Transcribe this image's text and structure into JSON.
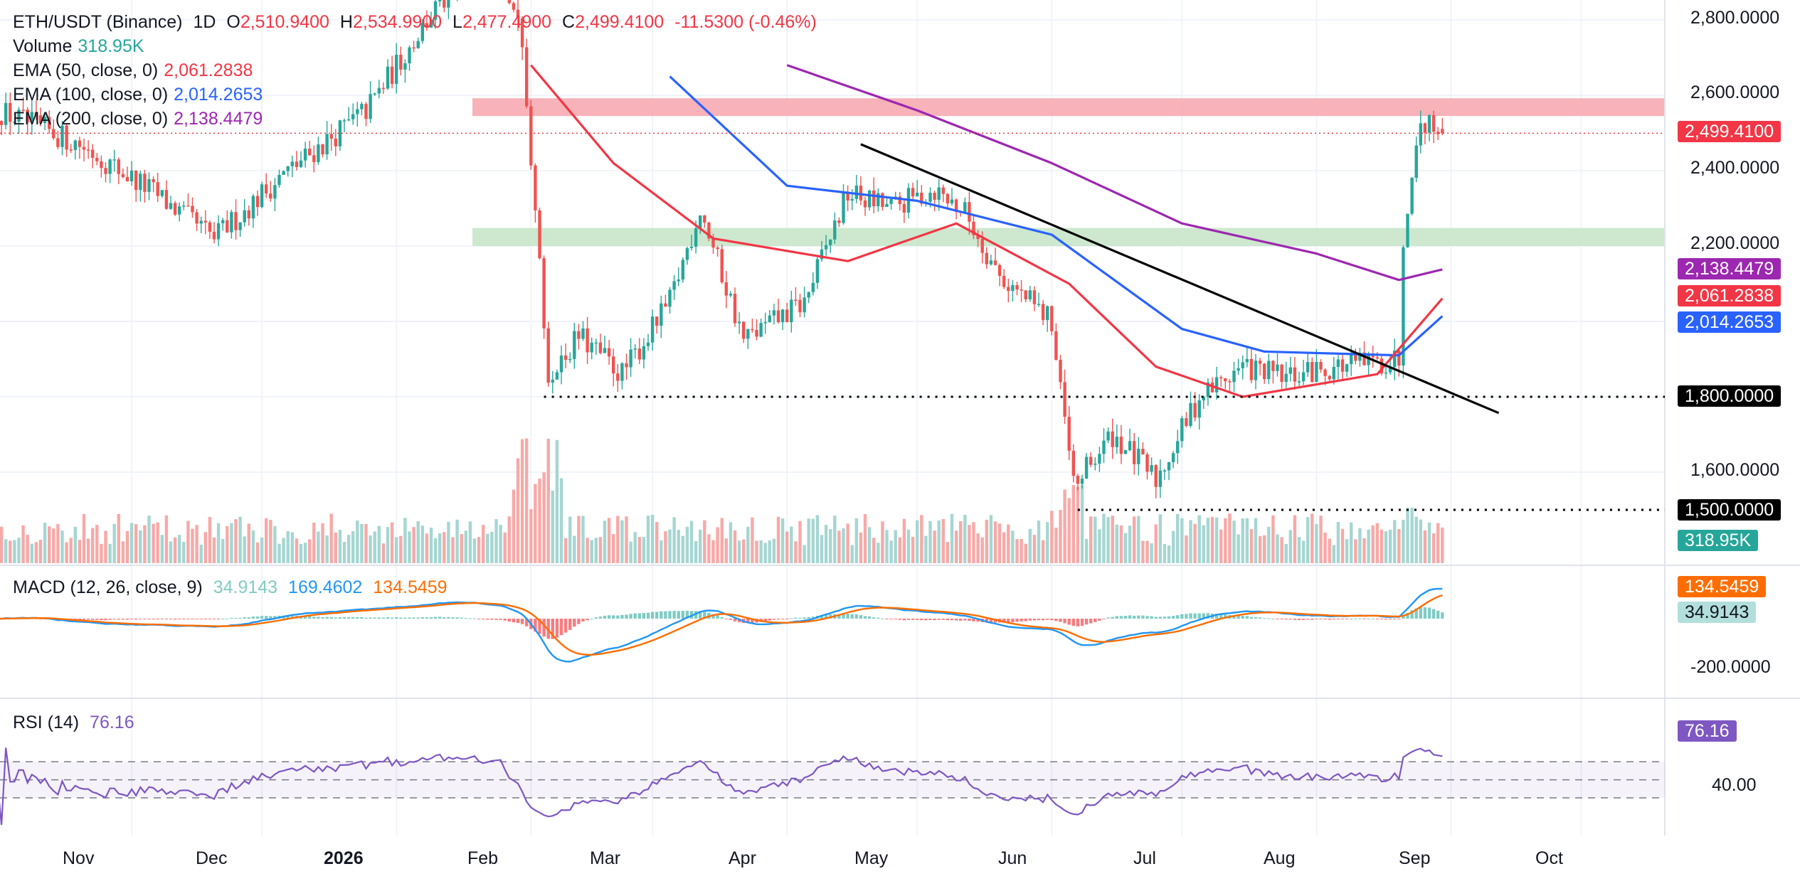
{
  "header": {
    "symbol": "ETH/USDT (Binance)",
    "interval": "1D",
    "o_label": "O",
    "o_value": "2,510.9400",
    "h_label": "H",
    "h_value": "2,534.9900",
    "l_label": "L",
    "l_value": "2,477.4900",
    "c_label": "C",
    "c_value": "2,499.4100",
    "change": "-11.5300 (-0.46%)"
  },
  "legend": {
    "volume_label": "Volume",
    "volume_value": "318.95K",
    "ema50_label": "EMA (50, close, 0)",
    "ema50_value": "2,061.2838",
    "ema100_label": "EMA (100, close, 0)",
    "ema100_value": "2,014.2653",
    "ema200_label": "EMA (200, close, 0)",
    "ema200_value": "2,138.4479",
    "macd_label": "MACD (12, 26, close, 9)",
    "macd_hist": "34.9143",
    "macd_line": "169.4602",
    "macd_signal": "134.5459",
    "rsi_label": "RSI (14)",
    "rsi_value": "76.16"
  },
  "price_axis": {
    "ticks": [
      "2,800.0000",
      "2,600.0000",
      "2,400.0000",
      "2,200.0000",
      "1,600.0000"
    ],
    "tags": {
      "last": "2,499.4100",
      "ema200": "2,138.4479",
      "ema50": "2,061.2838",
      "ema100": "2,014.2653",
      "support1": "1,800.0000",
      "support2": "1,500.0000",
      "volume": "318.95K"
    },
    "macd_tags": {
      "signal": "134.5459",
      "hist": "34.9143",
      "tick": "-200.0000"
    },
    "rsi_tags": {
      "rsi": "76.16",
      "tick": "40.00"
    }
  },
  "time_axis": [
    "Nov",
    "Dec",
    "2026",
    "Feb",
    "Mar",
    "Apr",
    "May",
    "Jun",
    "Jul",
    "Aug",
    "Sep",
    "Oct"
  ],
  "colors": {
    "up": "#26a69a",
    "down": "#ef5350",
    "ema50": "#f23645",
    "ema100": "#2962ff",
    "ema200": "#9c27b0",
    "macd": "#2196f3",
    "signal": "#ff6d00",
    "rsi": "#7e57c2",
    "resistance_zone": "#f7a4ad",
    "support_zone": "#c8e6c9"
  },
  "chart_data": {
    "type": "candlestick",
    "price_range": [
      1440,
      2830
    ],
    "zones": [
      {
        "kind": "resistance",
        "low": 2545,
        "high": 2592
      },
      {
        "kind": "support",
        "low": 2200,
        "high": 2248
      }
    ],
    "support_levels": [
      1800,
      1500
    ],
    "trendline": [
      {
        "date": "2026-04-18",
        "price": 2470
      },
      {
        "date": "2026-09-12",
        "price": 1757
      }
    ],
    "price_path": [
      [
        "2025-10-01",
        2560
      ],
      [
        "2025-10-20",
        2470
      ],
      [
        "2025-11-05",
        2350
      ],
      [
        "2025-11-20",
        2220
      ],
      [
        "2025-12-05",
        2380
      ],
      [
        "2025-12-25",
        2560
      ],
      [
        "2026-01-10",
        2830
      ],
      [
        "2026-01-25",
        2980
      ],
      [
        "2026-01-30",
        2720
      ],
      [
        "2026-02-01",
        2420
      ],
      [
        "2026-02-05",
        1850
      ],
      [
        "2026-02-12",
        1960
      ],
      [
        "2026-02-22",
        1860
      ],
      [
        "2026-03-05",
        2050
      ],
      [
        "2026-03-12",
        2300
      ],
      [
        "2026-03-22",
        1950
      ],
      [
        "2026-04-05",
        2050
      ],
      [
        "2026-04-15",
        2340
      ],
      [
        "2026-04-25",
        2300
      ],
      [
        "2026-05-05",
        2350
      ],
      [
        "2026-05-12",
        2290
      ],
      [
        "2026-05-20",
        2120
      ],
      [
        "2026-06-01",
        2000
      ],
      [
        "2026-06-06",
        1560
      ],
      [
        "2026-06-15",
        1700
      ],
      [
        "2026-06-25",
        1580
      ],
      [
        "2026-07-05",
        1800
      ],
      [
        "2026-07-15",
        1880
      ],
      [
        "2026-07-25",
        1850
      ],
      [
        "2026-08-05",
        1880
      ],
      [
        "2026-08-15",
        1890
      ],
      [
        "2026-08-20",
        1900
      ],
      [
        "2026-08-21",
        2220
      ],
      [
        "2026-08-23",
        2370
      ],
      [
        "2026-08-25",
        2530
      ],
      [
        "2026-08-30",
        2500
      ]
    ],
    "ema50_path": [
      [
        "2026-02-01",
        2680
      ],
      [
        "2026-02-20",
        2420
      ],
      [
        "2026-03-15",
        2220
      ],
      [
        "2026-04-15",
        2160
      ],
      [
        "2026-05-10",
        2260
      ],
      [
        "2026-06-05",
        2100
      ],
      [
        "2026-06-25",
        1880
      ],
      [
        "2026-07-15",
        1800
      ],
      [
        "2026-08-15",
        1860
      ],
      [
        "2026-08-30",
        2061
      ]
    ],
    "ema100_path": [
      [
        "2026-03-05",
        2650
      ],
      [
        "2026-04-01",
        2360
      ],
      [
        "2026-05-01",
        2320
      ],
      [
        "2026-06-01",
        2230
      ],
      [
        "2026-07-01",
        1980
      ],
      [
        "2026-07-20",
        1920
      ],
      [
        "2026-08-20",
        1910
      ],
      [
        "2026-08-30",
        2014
      ]
    ],
    "ema200_path": [
      [
        "2026-04-01",
        2680
      ],
      [
        "2026-05-01",
        2560
      ],
      [
        "2026-06-01",
        2420
      ],
      [
        "2026-07-01",
        2260
      ],
      [
        "2026-08-01",
        2180
      ],
      [
        "2026-08-20",
        2110
      ],
      [
        "2026-08-30",
        2138
      ]
    ],
    "last_volume": "318.95K",
    "macd": {
      "macd": 169.4602,
      "signal": 134.5459,
      "histogram": 34.9143
    },
    "rsi": {
      "value": 76.16,
      "upper": 70,
      "lower": 30
    }
  }
}
